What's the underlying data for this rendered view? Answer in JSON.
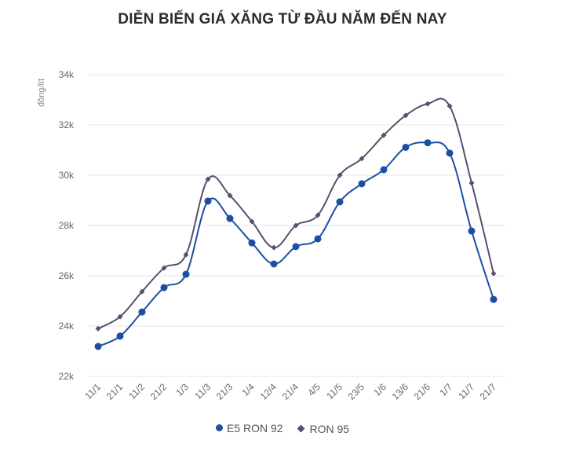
{
  "title": "DIỄN BIẾN GIÁ XĂNG TỪ ĐẦU NĂM ĐẾN NAY",
  "colors": {
    "e5": "#1c4ea3",
    "ron95": "#57506e",
    "grid": "#e6e6e6"
  },
  "legend": {
    "e5_label": "E5 RON 92",
    "ron95_label": "RON 95"
  },
  "chart_data": {
    "type": "line",
    "title": "DIỄN BIẾN GIÁ XĂNG TỪ ĐẦU NĂM ĐẾN NAY",
    "xlabel": "",
    "ylabel": "đồng/lít",
    "ylim": [
      22000,
      34000
    ],
    "yticks": [
      22000,
      24000,
      26000,
      28000,
      30000,
      32000,
      34000
    ],
    "ytick_labels": [
      "22k",
      "24k",
      "26k",
      "28k",
      "30k",
      "32k",
      "34k"
    ],
    "grid": true,
    "legend_position": "bottom",
    "categories": [
      "11/1",
      "21/1",
      "11/2",
      "21/2",
      "1/3",
      "11/3",
      "21/3",
      "1/4",
      "12/4",
      "21/4",
      "4/5",
      "11/5",
      "23/5",
      "1/6",
      "13/6",
      "21/6",
      "1/7",
      "11/7",
      "21/7"
    ],
    "series": [
      {
        "name": "E5 RON 92",
        "marker": "circle",
        "values": [
          23190,
          23600,
          24560,
          25530,
          26060,
          28970,
          28280,
          27310,
          26470,
          27160,
          27470,
          28940,
          29660,
          30220,
          31110,
          31290,
          30880,
          27780,
          25060
        ]
      },
      {
        "name": "RON 95",
        "marker": "diamond",
        "values": [
          23900,
          24370,
          25370,
          26310,
          26840,
          29840,
          29190,
          28160,
          27120,
          28000,
          28410,
          30000,
          30660,
          31590,
          32380,
          32840,
          32750,
          29690,
          26090
        ]
      }
    ]
  }
}
